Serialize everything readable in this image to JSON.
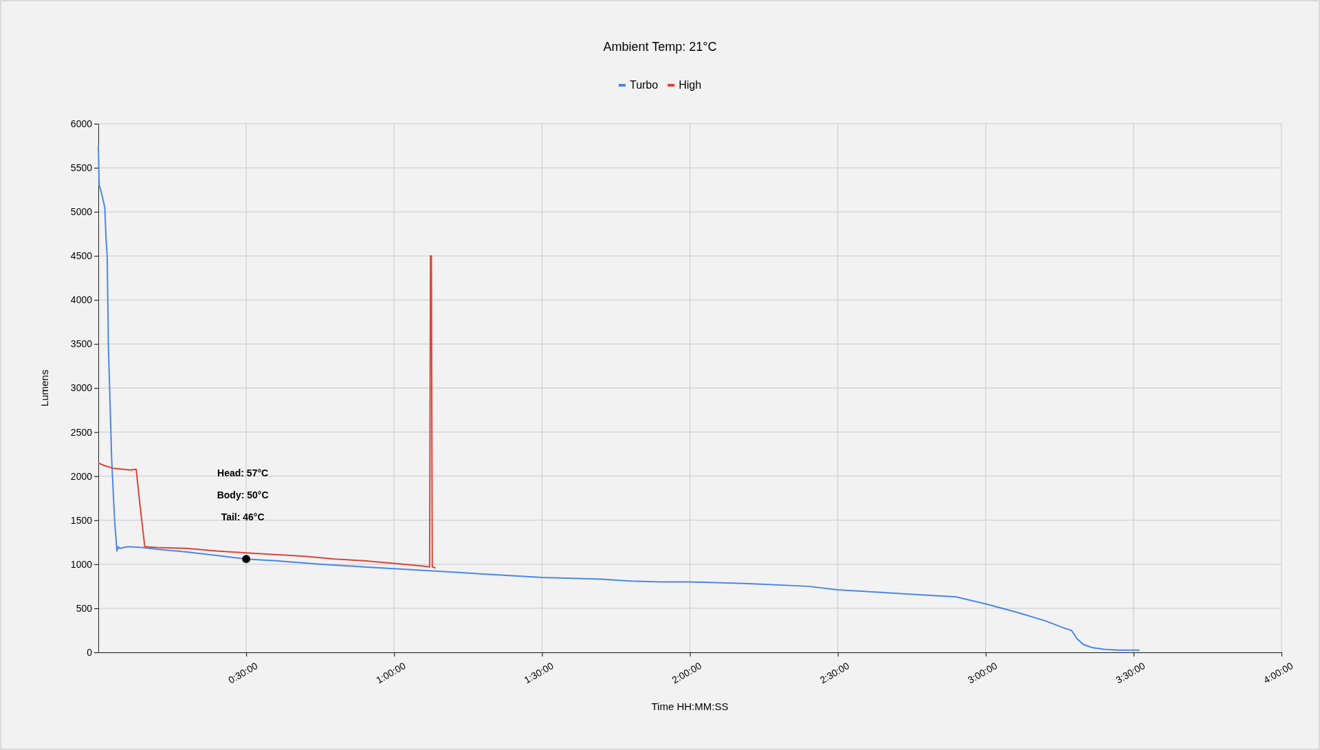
{
  "chart_data": {
    "type": "line",
    "title": "Ambient Temp: 21°C",
    "xlabel": "Time HH:MM:SS",
    "ylabel": "Lumens",
    "legend": "top",
    "grid": true,
    "marker": "none",
    "line_style": "solid",
    "xlim": [
      0,
      4
    ],
    "ylim": [
      0,
      6000
    ],
    "xticks": [
      {
        "value": 0.5,
        "label": "0:30:00"
      },
      {
        "value": 1,
        "label": "1:00:00"
      },
      {
        "value": 1.5,
        "label": "1:30:00"
      },
      {
        "value": 2,
        "label": "2:00:00"
      },
      {
        "value": 2.5,
        "label": "2:30:00"
      },
      {
        "value": 3,
        "label": "3:00:00"
      },
      {
        "value": 3.5,
        "label": "3:30:00"
      },
      {
        "value": 4,
        "label": "4:00:00"
      }
    ],
    "yticks": [
      0,
      500,
      1000,
      1500,
      2000,
      2500,
      3000,
      3500,
      4000,
      4500,
      5000,
      5500,
      6000
    ],
    "series": [
      {
        "name": "Turbo",
        "color": "#4a86e8",
        "x": [
          0,
          0.003,
          0.008,
          0.015,
          0.022,
          0.026,
          0.03,
          0.034,
          0.045,
          0.055,
          0.063,
          0.067,
          0.072,
          0.1,
          0.15,
          0.2,
          0.3,
          0.4,
          0.5,
          0.6,
          0.75,
          0.9,
          1.0,
          1.1,
          1.2,
          1.3,
          1.4,
          1.5,
          1.6,
          1.7,
          1.8,
          1.9,
          2.0,
          2.2,
          2.4,
          2.5,
          2.6,
          2.75,
          2.9,
          3.0,
          3.1,
          3.2,
          3.27,
          3.29,
          3.31,
          3.33,
          3.36,
          3.4,
          3.45,
          3.52
        ],
        "values": [
          5750,
          5300,
          5250,
          5150,
          5050,
          4700,
          4500,
          3500,
          2200,
          1500,
          1150,
          1200,
          1180,
          1200,
          1190,
          1170,
          1140,
          1100,
          1060,
          1040,
          1000,
          970,
          950,
          930,
          910,
          890,
          870,
          850,
          840,
          830,
          810,
          800,
          800,
          780,
          750,
          710,
          690,
          660,
          630,
          550,
          460,
          360,
          270,
          250,
          150,
          90,
          55,
          35,
          25,
          25
        ]
      },
      {
        "name": "High",
        "color": "#db4437",
        "x": [
          0,
          0.02,
          0.05,
          0.08,
          0.11,
          0.128,
          0.14,
          0.157,
          0.2,
          0.3,
          0.4,
          0.5,
          0.6,
          0.7,
          0.8,
          0.9,
          1.0,
          1.1,
          1.12,
          1.123,
          1.126,
          1.129,
          1.14
        ],
        "values": [
          2150,
          2120,
          2090,
          2080,
          2070,
          2080,
          1700,
          1200,
          1190,
          1180,
          1150,
          1130,
          1110,
          1090,
          1060,
          1040,
          1010,
          980,
          970,
          4500,
          4500,
          970,
          960
        ]
      },
      {
        "type": "scatter",
        "marker": "circle",
        "color": "#000000",
        "x": [
          0.5
        ],
        "values": [
          1060
        ]
      }
    ],
    "annotations": [
      "Head: 57°C",
      "Body: 50°C",
      "Tail: 46°C"
    ]
  }
}
